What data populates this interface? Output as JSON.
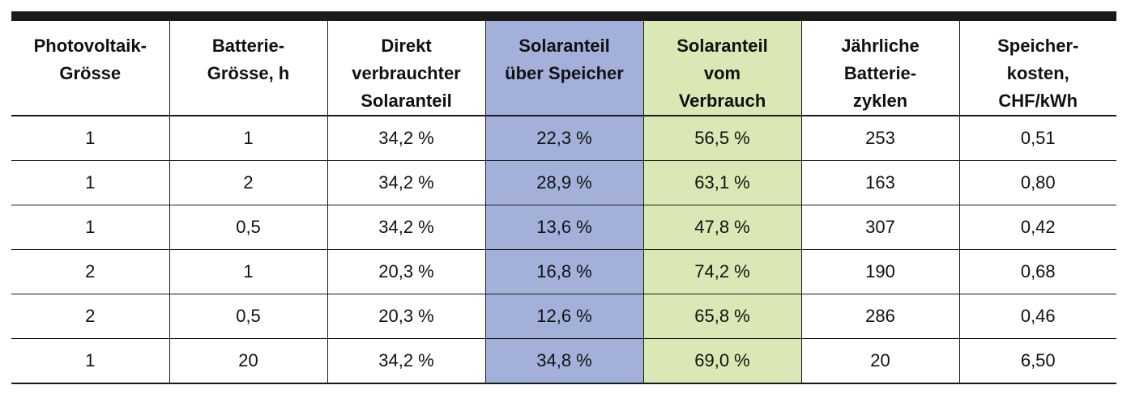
{
  "table": {
    "headers": [
      "Photovoltaik-\nGrösse",
      "Batterie-\nGrösse, h",
      "Direkt\nverbrauchter\nSolaranteil",
      "Solaranteil\nüber Speicher",
      "Solaranteil\nvom\nVerbrauch",
      "Jährliche\nBatterie-\nzyklen",
      "Speicher-\nkosten,\nCHF/kWh"
    ],
    "rows": [
      [
        "1",
        "1",
        "34,2 %",
        "22,3 %",
        "56,5 %",
        "253",
        "0,51"
      ],
      [
        "1",
        "2",
        "34,2 %",
        "28,9 %",
        "63,1 %",
        "163",
        "0,80"
      ],
      [
        "1",
        "0,5",
        "34,2 %",
        "13,6 %",
        "47,8 %",
        "307",
        "0,42"
      ],
      [
        "2",
        "1",
        "20,3 %",
        "16,8 %",
        "74,2 %",
        "190",
        "0,68"
      ],
      [
        "2",
        "0,5",
        "20,3 %",
        "12,6 %",
        "65,8 %",
        "286",
        "0,46"
      ],
      [
        "1",
        "20",
        "34,2 %",
        "34,8 %",
        "69,0 %",
        "20",
        "6,50"
      ]
    ]
  },
  "colors": {
    "solaranteil_ueber_speicher_column": "#a3b1da",
    "solaranteil_vom_verbrauch_column": "#d9e8b5",
    "rule_lines": "#1a1a1a"
  }
}
